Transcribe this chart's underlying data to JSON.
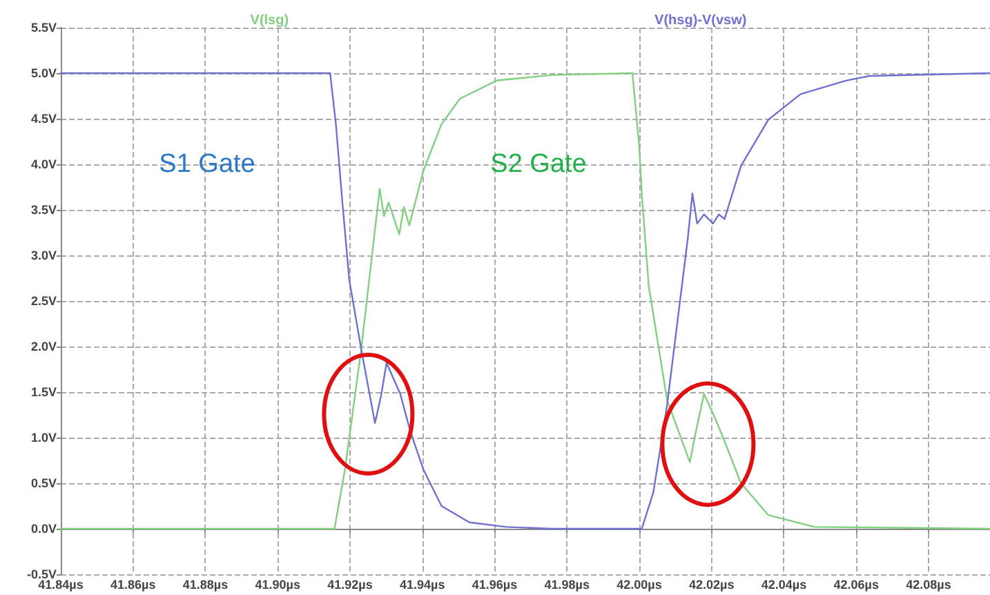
{
  "chart_data": {
    "type": "line",
    "xlim": [
      41.84,
      42.097
    ],
    "ylim": [
      -0.5,
      5.5
    ],
    "xticks": [
      {
        "value": 41.84,
        "label": "41.84µs"
      },
      {
        "value": 41.86,
        "label": "41.86µs"
      },
      {
        "value": 41.88,
        "label": "41.88µs"
      },
      {
        "value": 41.9,
        "label": "41.90µs"
      },
      {
        "value": 41.92,
        "label": "41.92µs"
      },
      {
        "value": 41.94,
        "label": "41.94µs"
      },
      {
        "value": 41.96,
        "label": "41.96µs"
      },
      {
        "value": 41.98,
        "label": "41.98µs"
      },
      {
        "value": 42.0,
        "label": "42.00µs"
      },
      {
        "value": 42.02,
        "label": "42.02µs"
      },
      {
        "value": 42.04,
        "label": "42.04µs"
      },
      {
        "value": 42.06,
        "label": "42.06µs"
      },
      {
        "value": 42.08,
        "label": "42.08µs"
      }
    ],
    "yticks": [
      {
        "value": -0.5,
        "label": "-0.5V"
      },
      {
        "value": 0,
        "label": "0.0V"
      },
      {
        "value": 0.5,
        "label": "0.5V"
      },
      {
        "value": 1,
        "label": "1.0V"
      },
      {
        "value": 1.5,
        "label": "1.5V"
      },
      {
        "value": 2,
        "label": "2.0V"
      },
      {
        "value": 2.5,
        "label": "2.5V"
      },
      {
        "value": 3,
        "label": "3.0V"
      },
      {
        "value": 3.5,
        "label": "3.5V"
      },
      {
        "value": 4,
        "label": "4.0V"
      },
      {
        "value": 4.5,
        "label": "4.5V"
      },
      {
        "value": 5,
        "label": "5.0V"
      },
      {
        "value": 5.5,
        "label": "5.5V"
      }
    ],
    "grid": true,
    "legend": "top",
    "marker": "none",
    "line_style": "solid",
    "series": [
      {
        "name": "V(lsg)",
        "color": "#80d080",
        "x": [
          41.84,
          41.9157,
          41.9186,
          41.9231,
          41.9282,
          41.9294,
          41.9307,
          41.9336,
          41.9349,
          41.9364,
          41.9403,
          41.9453,
          41.9504,
          41.9606,
          41.9759,
          41.9981,
          42.0,
          42.0007,
          42.0026,
          42.0077,
          42.014,
          42.0153,
          42.0179,
          42.021,
          42.0242,
          42.0281,
          42.0357,
          42.0484,
          42.097
        ],
        "values": [
          0,
          0,
          0.65,
          1.97,
          3.73,
          3.43,
          3.58,
          3.23,
          3.53,
          3.33,
          3.93,
          4.44,
          4.72,
          4.92,
          4.98,
          5,
          4.19,
          3.68,
          2.67,
          1.41,
          0.73,
          1.0,
          1.48,
          1.21,
          0.9,
          0.5,
          0.15,
          0.02,
          0
        ]
      },
      {
        "name": "V(hsg)-V(vsw)",
        "color": "#7070d0",
        "x": [
          41.84,
          41.9145,
          41.9161,
          41.918,
          41.9198,
          41.9231,
          41.9269,
          41.9286,
          41.9301,
          41.9339,
          41.9364,
          41.9377,
          41.9403,
          41.9453,
          41.953,
          41.9632,
          41.9759,
          42.0007,
          42.0039,
          42.0077,
          42.0134,
          42.0147,
          42.016,
          42.0179,
          42.0204,
          42.022,
          42.0236,
          42.0281,
          42.0357,
          42.0446,
          42.0573,
          42.0637,
          42.097
        ],
        "values": [
          5,
          5,
          4.44,
          3.53,
          2.73,
          1.97,
          1.16,
          1.46,
          1.82,
          1.48,
          1.11,
          0.95,
          0.65,
          0.25,
          0.07,
          0.02,
          0,
          0,
          0.4,
          1.36,
          3.18,
          3.68,
          3.35,
          3.45,
          3.35,
          3.45,
          3.4,
          3.98,
          4.49,
          4.77,
          4.92,
          4.97,
          5
        ]
      }
    ],
    "annotations": [
      "S1 Gate",
      "S2 Gate"
    ]
  }
}
